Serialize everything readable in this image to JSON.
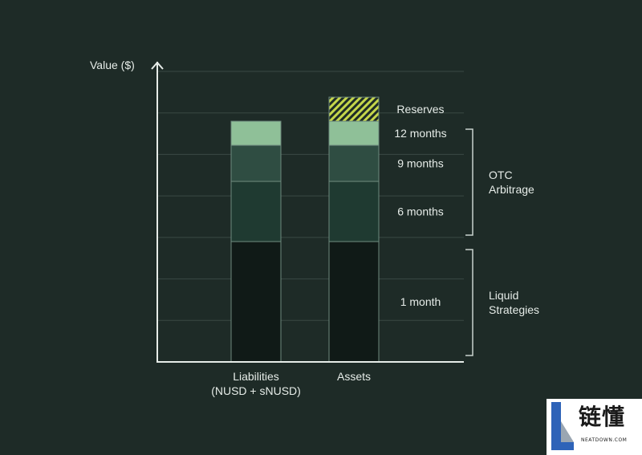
{
  "chart_data": {
    "type": "bar",
    "stacked": true,
    "ylabel": "Value ($)",
    "ylim": [
      0,
      7
    ],
    "grid": true,
    "categories": [
      "Liabilities\n(NUSD + sNUSD)",
      "Assets"
    ],
    "series": [
      {
        "name": "1 month",
        "values": [
          2.9,
          2.9
        ],
        "color": "#101a17"
      },
      {
        "name": "6 months",
        "values": [
          1.45,
          1.45
        ],
        "color": "#1f3a31"
      },
      {
        "name": "9 months",
        "values": [
          0.87,
          0.87
        ],
        "color": "#2f4d42"
      },
      {
        "name": "12 months",
        "values": [
          0.58,
          0.58
        ],
        "color": "#8fc098"
      },
      {
        "name": "Reserves",
        "values": [
          0,
          0.58
        ],
        "color": "#c5d64a",
        "pattern": "hatched"
      }
    ],
    "groups": [
      {
        "label": "OTC\nArbitrage",
        "members": [
          "6 months",
          "9 months",
          "12 months"
        ]
      },
      {
        "label": "Liquid\nStrategies",
        "members": [
          "1 month"
        ]
      }
    ]
  },
  "colors": {
    "background": "#1e2b27",
    "text": "#e6ece8",
    "axis": "#e6ece8",
    "grid": "#3a4944",
    "bar_border": "#6e8a7e",
    "bracket": "#c8d2cd"
  },
  "watermark": {
    "text": "链懂",
    "subtext": "NEATDOWN.COM"
  }
}
